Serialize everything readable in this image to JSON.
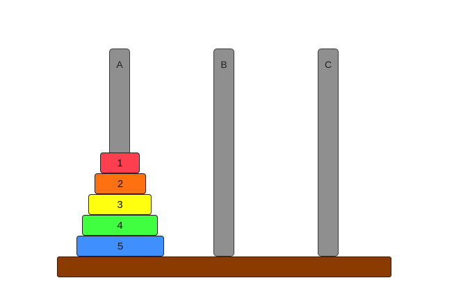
{
  "pegs": [
    {
      "id": "A",
      "label": "A"
    },
    {
      "id": "B",
      "label": "B"
    },
    {
      "id": "C",
      "label": "C"
    }
  ],
  "disks": [
    {
      "label": "1",
      "peg": "A",
      "color": "#ff3f4f"
    },
    {
      "label": "2",
      "peg": "A",
      "color": "#ff7010"
    },
    {
      "label": "3",
      "peg": "A",
      "color": "#ffff10"
    },
    {
      "label": "4",
      "peg": "A",
      "color": "#40ff40"
    },
    {
      "label": "5",
      "peg": "A",
      "color": "#3f8fff"
    }
  ],
  "colors": {
    "peg": "#8f8f8f",
    "base": "#8b3a00"
  }
}
